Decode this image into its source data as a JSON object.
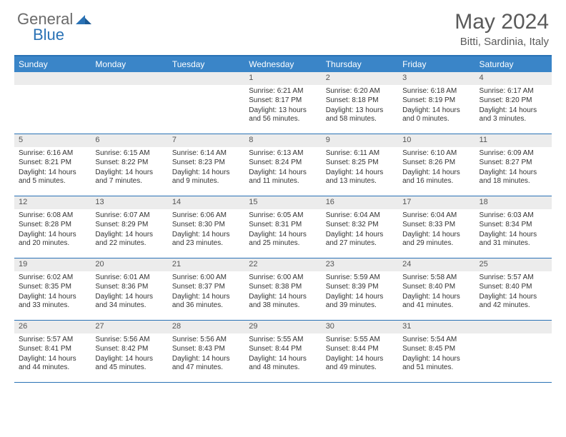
{
  "brand": {
    "part1": "General",
    "part2": "Blue"
  },
  "title": {
    "month": "May 2024",
    "location": "Bitti, Sardinia, Italy"
  },
  "colors": {
    "header_bg": "#3a85c8",
    "header_border": "#2a72b5",
    "daynum_bg": "#ececec",
    "text": "#333333",
    "logo_gray": "#6a6a6a",
    "logo_blue": "#2a72b5"
  },
  "day_labels": [
    "Sunday",
    "Monday",
    "Tuesday",
    "Wednesday",
    "Thursday",
    "Friday",
    "Saturday"
  ],
  "weeks": [
    [
      {
        "num": "",
        "sunrise": "",
        "sunset": "",
        "daylight": ""
      },
      {
        "num": "",
        "sunrise": "",
        "sunset": "",
        "daylight": ""
      },
      {
        "num": "",
        "sunrise": "",
        "sunset": "",
        "daylight": ""
      },
      {
        "num": "1",
        "sunrise": "Sunrise: 6:21 AM",
        "sunset": "Sunset: 8:17 PM",
        "daylight": "Daylight: 13 hours and 56 minutes."
      },
      {
        "num": "2",
        "sunrise": "Sunrise: 6:20 AM",
        "sunset": "Sunset: 8:18 PM",
        "daylight": "Daylight: 13 hours and 58 minutes."
      },
      {
        "num": "3",
        "sunrise": "Sunrise: 6:18 AM",
        "sunset": "Sunset: 8:19 PM",
        "daylight": "Daylight: 14 hours and 0 minutes."
      },
      {
        "num": "4",
        "sunrise": "Sunrise: 6:17 AM",
        "sunset": "Sunset: 8:20 PM",
        "daylight": "Daylight: 14 hours and 3 minutes."
      }
    ],
    [
      {
        "num": "5",
        "sunrise": "Sunrise: 6:16 AM",
        "sunset": "Sunset: 8:21 PM",
        "daylight": "Daylight: 14 hours and 5 minutes."
      },
      {
        "num": "6",
        "sunrise": "Sunrise: 6:15 AM",
        "sunset": "Sunset: 8:22 PM",
        "daylight": "Daylight: 14 hours and 7 minutes."
      },
      {
        "num": "7",
        "sunrise": "Sunrise: 6:14 AM",
        "sunset": "Sunset: 8:23 PM",
        "daylight": "Daylight: 14 hours and 9 minutes."
      },
      {
        "num": "8",
        "sunrise": "Sunrise: 6:13 AM",
        "sunset": "Sunset: 8:24 PM",
        "daylight": "Daylight: 14 hours and 11 minutes."
      },
      {
        "num": "9",
        "sunrise": "Sunrise: 6:11 AM",
        "sunset": "Sunset: 8:25 PM",
        "daylight": "Daylight: 14 hours and 13 minutes."
      },
      {
        "num": "10",
        "sunrise": "Sunrise: 6:10 AM",
        "sunset": "Sunset: 8:26 PM",
        "daylight": "Daylight: 14 hours and 16 minutes."
      },
      {
        "num": "11",
        "sunrise": "Sunrise: 6:09 AM",
        "sunset": "Sunset: 8:27 PM",
        "daylight": "Daylight: 14 hours and 18 minutes."
      }
    ],
    [
      {
        "num": "12",
        "sunrise": "Sunrise: 6:08 AM",
        "sunset": "Sunset: 8:28 PM",
        "daylight": "Daylight: 14 hours and 20 minutes."
      },
      {
        "num": "13",
        "sunrise": "Sunrise: 6:07 AM",
        "sunset": "Sunset: 8:29 PM",
        "daylight": "Daylight: 14 hours and 22 minutes."
      },
      {
        "num": "14",
        "sunrise": "Sunrise: 6:06 AM",
        "sunset": "Sunset: 8:30 PM",
        "daylight": "Daylight: 14 hours and 23 minutes."
      },
      {
        "num": "15",
        "sunrise": "Sunrise: 6:05 AM",
        "sunset": "Sunset: 8:31 PM",
        "daylight": "Daylight: 14 hours and 25 minutes."
      },
      {
        "num": "16",
        "sunrise": "Sunrise: 6:04 AM",
        "sunset": "Sunset: 8:32 PM",
        "daylight": "Daylight: 14 hours and 27 minutes."
      },
      {
        "num": "17",
        "sunrise": "Sunrise: 6:04 AM",
        "sunset": "Sunset: 8:33 PM",
        "daylight": "Daylight: 14 hours and 29 minutes."
      },
      {
        "num": "18",
        "sunrise": "Sunrise: 6:03 AM",
        "sunset": "Sunset: 8:34 PM",
        "daylight": "Daylight: 14 hours and 31 minutes."
      }
    ],
    [
      {
        "num": "19",
        "sunrise": "Sunrise: 6:02 AM",
        "sunset": "Sunset: 8:35 PM",
        "daylight": "Daylight: 14 hours and 33 minutes."
      },
      {
        "num": "20",
        "sunrise": "Sunrise: 6:01 AM",
        "sunset": "Sunset: 8:36 PM",
        "daylight": "Daylight: 14 hours and 34 minutes."
      },
      {
        "num": "21",
        "sunrise": "Sunrise: 6:00 AM",
        "sunset": "Sunset: 8:37 PM",
        "daylight": "Daylight: 14 hours and 36 minutes."
      },
      {
        "num": "22",
        "sunrise": "Sunrise: 6:00 AM",
        "sunset": "Sunset: 8:38 PM",
        "daylight": "Daylight: 14 hours and 38 minutes."
      },
      {
        "num": "23",
        "sunrise": "Sunrise: 5:59 AM",
        "sunset": "Sunset: 8:39 PM",
        "daylight": "Daylight: 14 hours and 39 minutes."
      },
      {
        "num": "24",
        "sunrise": "Sunrise: 5:58 AM",
        "sunset": "Sunset: 8:40 PM",
        "daylight": "Daylight: 14 hours and 41 minutes."
      },
      {
        "num": "25",
        "sunrise": "Sunrise: 5:57 AM",
        "sunset": "Sunset: 8:40 PM",
        "daylight": "Daylight: 14 hours and 42 minutes."
      }
    ],
    [
      {
        "num": "26",
        "sunrise": "Sunrise: 5:57 AM",
        "sunset": "Sunset: 8:41 PM",
        "daylight": "Daylight: 14 hours and 44 minutes."
      },
      {
        "num": "27",
        "sunrise": "Sunrise: 5:56 AM",
        "sunset": "Sunset: 8:42 PM",
        "daylight": "Daylight: 14 hours and 45 minutes."
      },
      {
        "num": "28",
        "sunrise": "Sunrise: 5:56 AM",
        "sunset": "Sunset: 8:43 PM",
        "daylight": "Daylight: 14 hours and 47 minutes."
      },
      {
        "num": "29",
        "sunrise": "Sunrise: 5:55 AM",
        "sunset": "Sunset: 8:44 PM",
        "daylight": "Daylight: 14 hours and 48 minutes."
      },
      {
        "num": "30",
        "sunrise": "Sunrise: 5:55 AM",
        "sunset": "Sunset: 8:44 PM",
        "daylight": "Daylight: 14 hours and 49 minutes."
      },
      {
        "num": "31",
        "sunrise": "Sunrise: 5:54 AM",
        "sunset": "Sunset: 8:45 PM",
        "daylight": "Daylight: 14 hours and 51 minutes."
      },
      {
        "num": "",
        "sunrise": "",
        "sunset": "",
        "daylight": ""
      }
    ]
  ]
}
